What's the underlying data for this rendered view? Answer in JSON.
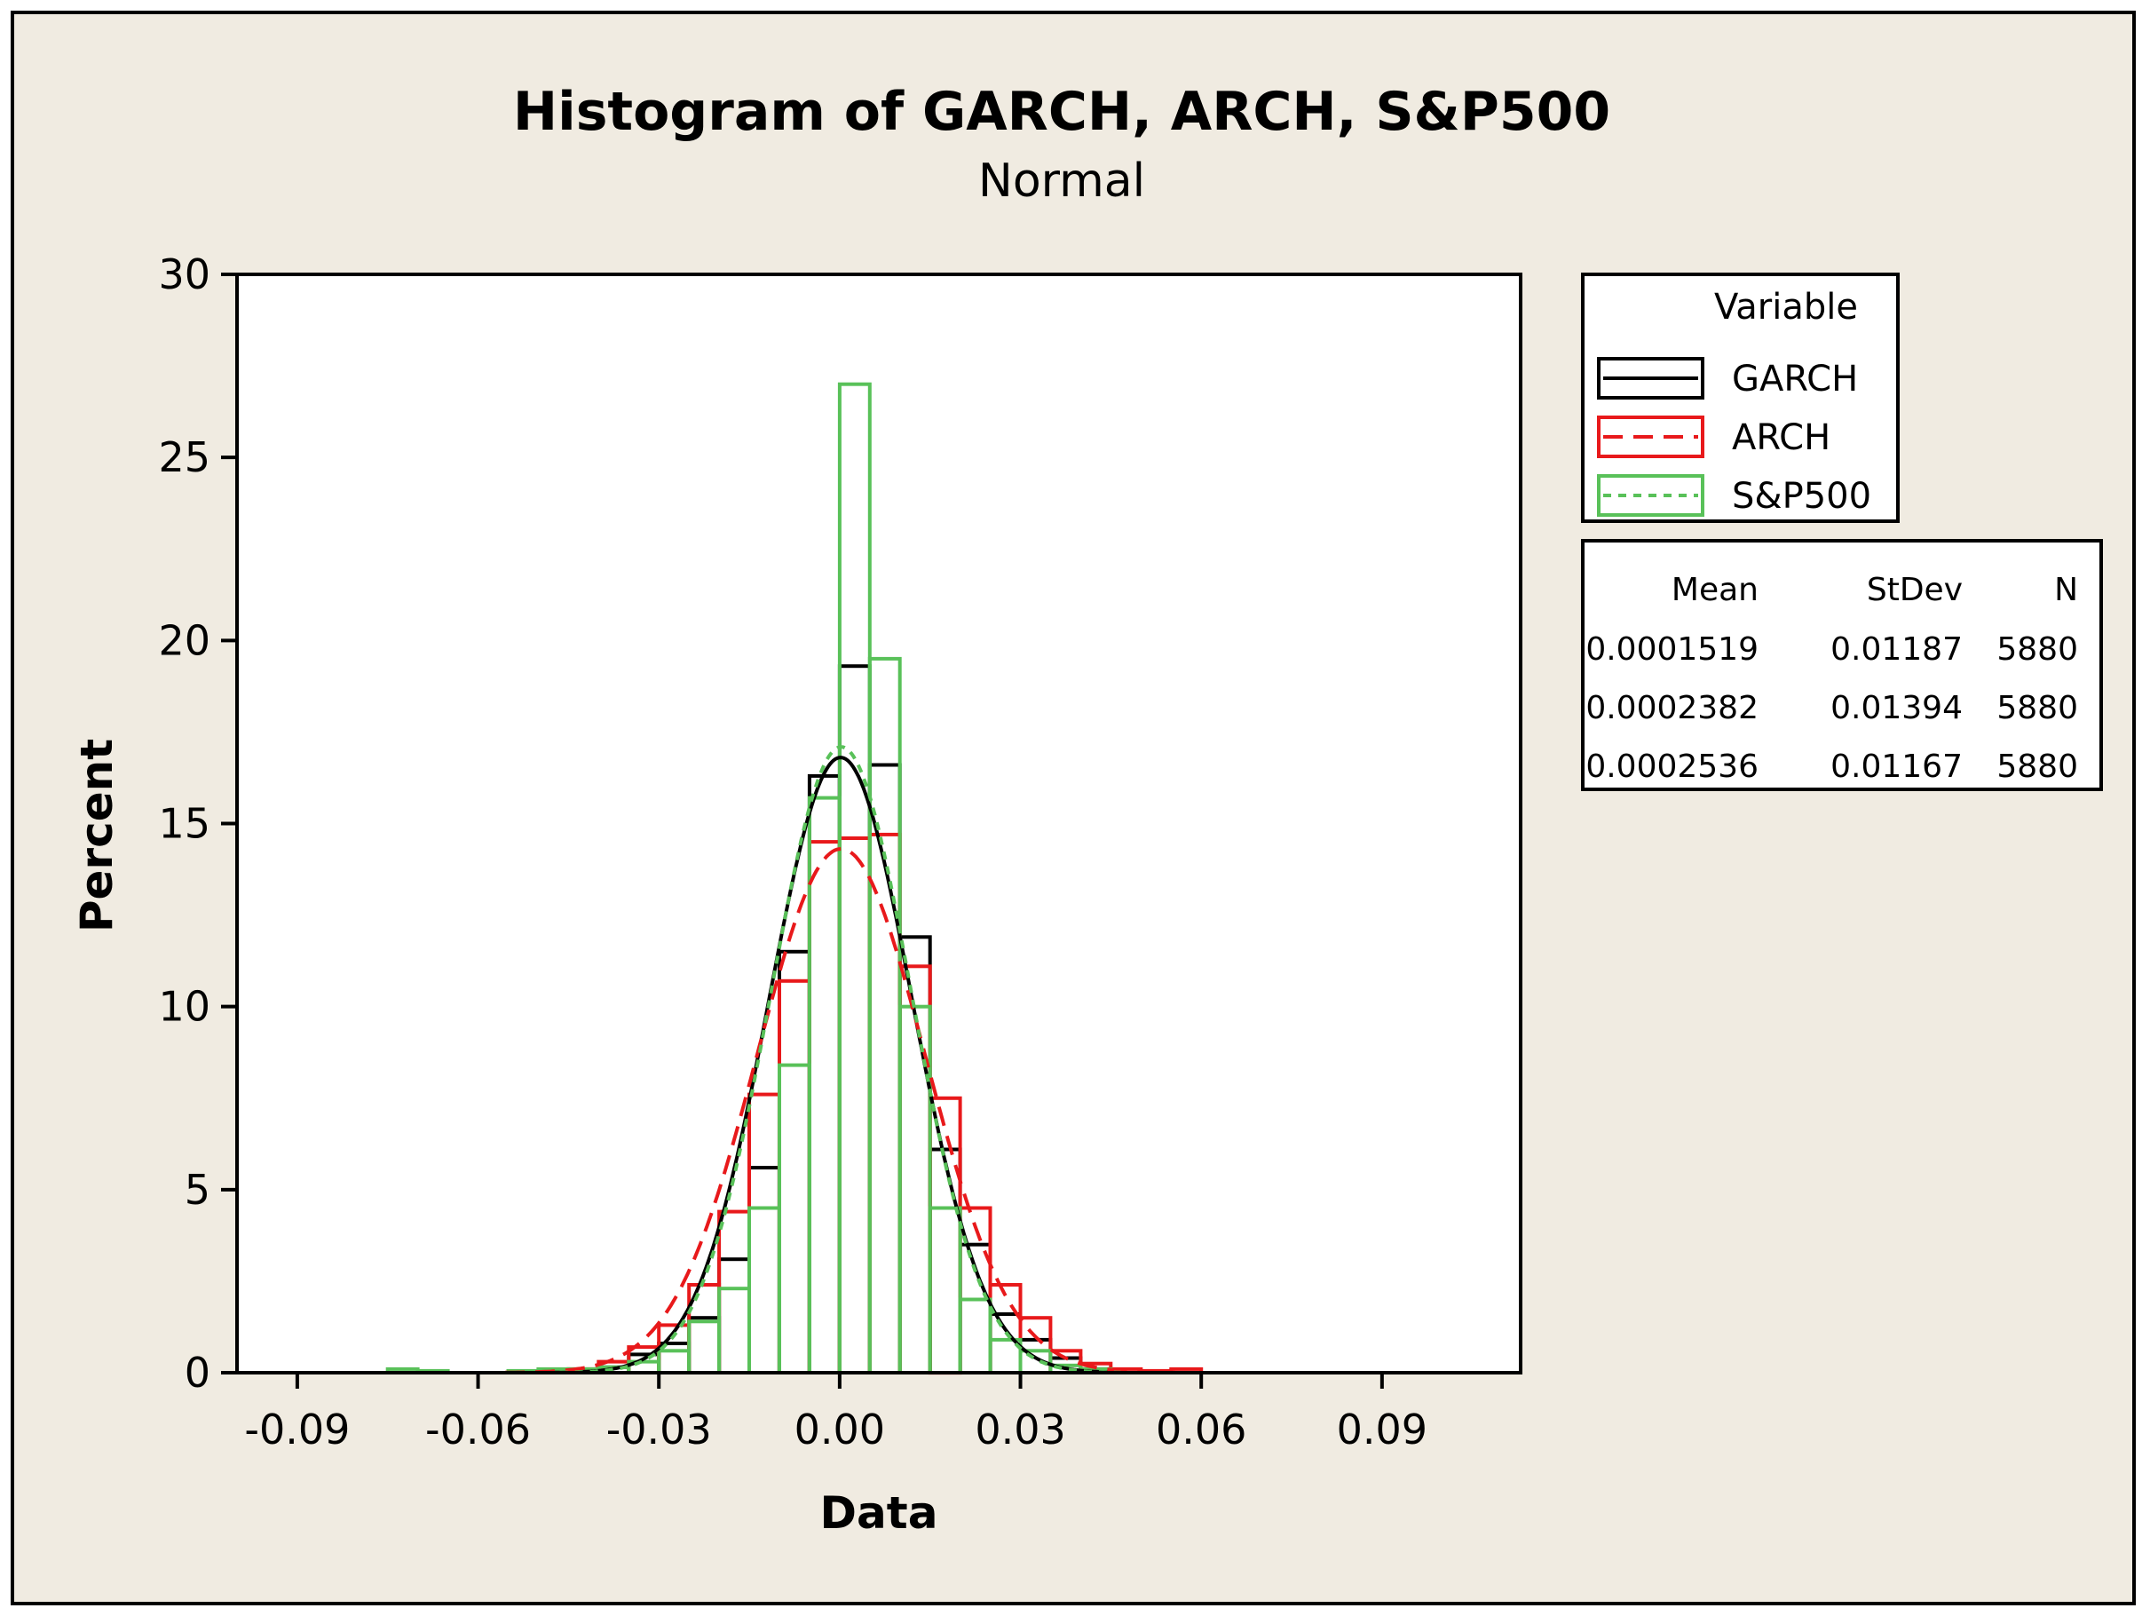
{
  "chart_data": {
    "type": "bar",
    "title": "Histogram of GARCH, ARCH, S&P500",
    "subtitle": "Normal",
    "xlabel": "Data",
    "ylabel": "Percent",
    "xlim": [
      -0.1,
      0.113
    ],
    "ylim": [
      0,
      30
    ],
    "x_ticks": [
      {
        "value": -0.09,
        "label": "-0.09"
      },
      {
        "value": -0.06,
        "label": "-0.06"
      },
      {
        "value": -0.03,
        "label": "-0.03"
      },
      {
        "value": 0.0,
        "label": "0.00"
      },
      {
        "value": 0.03,
        "label": "0.03"
      },
      {
        "value": 0.06,
        "label": "0.06"
      },
      {
        "value": 0.09,
        "label": "0.09"
      }
    ],
    "y_ticks": [
      {
        "value": 0,
        "label": "0"
      },
      {
        "value": 5,
        "label": "5"
      },
      {
        "value": 10,
        "label": "10"
      },
      {
        "value": 15,
        "label": "15"
      },
      {
        "value": 20,
        "label": "20"
      },
      {
        "value": 25,
        "label": "25"
      },
      {
        "value": 30,
        "label": "30"
      }
    ],
    "bin_width": 0.005,
    "legend_title": "Variable",
    "legend_position": "right",
    "stats_headers": [
      "Mean",
      "StDev",
      "N"
    ],
    "series": [
      {
        "name": "GARCH",
        "color": "#000000",
        "line_style": "solid",
        "mean": 0.0001519,
        "stdev": 0.01187,
        "n": 5880,
        "stats_text": [
          "0.0001519",
          "0.01187",
          "5880"
        ],
        "bin_starts": [
          -0.045,
          -0.04,
          -0.035,
          -0.03,
          -0.025,
          -0.02,
          -0.015,
          -0.01,
          -0.005,
          0.0,
          0.005,
          0.01,
          0.015,
          0.02,
          0.025,
          0.03,
          0.035,
          0.04
        ],
        "values": [
          0.05,
          0.15,
          0.5,
          0.8,
          1.5,
          3.1,
          5.6,
          11.5,
          16.3,
          19.3,
          16.6,
          11.9,
          6.1,
          3.5,
          1.6,
          0.9,
          0.4,
          0.1
        ]
      },
      {
        "name": "ARCH",
        "color": "#e8191b",
        "line_style": "dash",
        "mean": 0.0002382,
        "stdev": 0.01394,
        "n": 5880,
        "stats_text": [
          "0.0002382",
          "0.01394",
          "5880"
        ],
        "bin_starts": [
          -0.05,
          -0.045,
          -0.04,
          -0.035,
          -0.03,
          -0.025,
          -0.02,
          -0.015,
          -0.01,
          -0.005,
          0.0,
          0.005,
          0.01,
          0.015,
          0.02,
          0.025,
          0.03,
          0.035,
          0.04,
          0.045,
          0.05,
          0.055
        ],
        "values": [
          0.05,
          0.1,
          0.3,
          0.7,
          1.3,
          2.4,
          4.4,
          7.6,
          10.7,
          14.5,
          14.6,
          14.7,
          11.1,
          7.5,
          4.5,
          2.4,
          1.5,
          0.6,
          0.25,
          0.1,
          0.05,
          0.1
        ]
      },
      {
        "name": "S&P500",
        "color": "#59c159",
        "line_style": "dot",
        "mean": 0.0002536,
        "stdev": 0.01167,
        "n": 5880,
        "stats_text": [
          "0.0002536",
          "0.01167",
          "5880"
        ],
        "bin_starts": [
          -0.075,
          -0.07,
          -0.055,
          -0.05,
          -0.045,
          -0.04,
          -0.035,
          -0.03,
          -0.025,
          -0.02,
          -0.015,
          -0.01,
          -0.005,
          0.0,
          0.005,
          0.01,
          0.015,
          0.02,
          0.025,
          0.03,
          0.035,
          0.04
        ],
        "values": [
          0.1,
          0.05,
          0.05,
          0.1,
          0.1,
          0.15,
          0.3,
          0.6,
          1.4,
          2.3,
          4.5,
          8.4,
          15.7,
          27.0,
          19.5,
          10.0,
          4.5,
          2.0,
          0.9,
          0.6,
          0.2,
          0.1
        ]
      }
    ]
  }
}
